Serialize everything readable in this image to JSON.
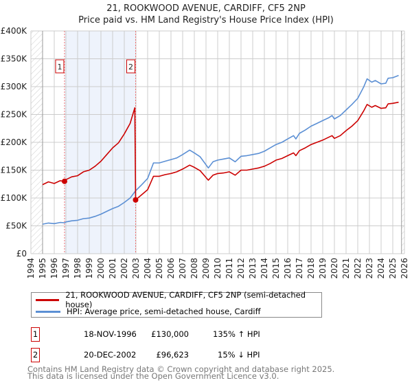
{
  "chart_data": {
    "type": "line",
    "title": "21, ROOKWOOD AVENUE, CARDIFF, CF5 2NP",
    "subtitle": "Price paid vs. HM Land Registry's House Price Index (HPI)",
    "xlabel": "",
    "ylabel": "",
    "xlim": [
      1994,
      2026
    ],
    "ylim": [
      0,
      400000
    ],
    "grid": true,
    "y_ticks": [
      {
        "value": 0,
        "label": "£0"
      },
      {
        "value": 50000,
        "label": "£50K"
      },
      {
        "value": 100000,
        "label": "£100K"
      },
      {
        "value": 150000,
        "label": "£150K"
      },
      {
        "value": 200000,
        "label": "£200K"
      },
      {
        "value": 250000,
        "label": "£250K"
      },
      {
        "value": 300000,
        "label": "£300K"
      },
      {
        "value": 350000,
        "label": "£350K"
      },
      {
        "value": 400000,
        "label": "£400K"
      }
    ],
    "x_ticks": [
      "1994",
      "1995",
      "1996",
      "1997",
      "1998",
      "1999",
      "2000",
      "2001",
      "2002",
      "2003",
      "2004",
      "2005",
      "2006",
      "2007",
      "2008",
      "2009",
      "2010",
      "2011",
      "2012",
      "2013",
      "2014",
      "2015",
      "2016",
      "2017",
      "2018",
      "2019",
      "2020",
      "2021",
      "2022",
      "2023",
      "2024",
      "2025",
      "2026"
    ],
    "data_range": [
      1995,
      2025.75
    ],
    "series": [
      {
        "name": "21, ROOKWOOD AVENUE, CARDIFF, CF5 2NP (semi-detached house)",
        "color": "#cc0000",
        "x": [
          1995,
          1995.5,
          1996,
          1996.5,
          1996.88,
          1997,
          1997.5,
          1998,
          1998.5,
          1999,
          1999.5,
          2000,
          2000.5,
          2001,
          2001.5,
          2002,
          2002.5,
          2002.9,
          2002.97,
          2003.5,
          2004,
          2004.5,
          2005,
          2005.5,
          2006,
          2006.5,
          2007,
          2007.6,
          2008,
          2008.5,
          2009.2,
          2009.6,
          2010,
          2010.5,
          2011,
          2011.5,
          2012,
          2012.5,
          2013,
          2013.5,
          2014,
          2014.5,
          2015,
          2015.5,
          2016,
          2016.5,
          2016.7,
          2017,
          2017.5,
          2018,
          2018.5,
          2019,
          2019.5,
          2019.8,
          2020,
          2020.5,
          2021,
          2021.5,
          2022,
          2022.5,
          2022.8,
          2023.2,
          2023.5,
          2024,
          2024.4,
          2024.6,
          2025,
          2025.5
        ],
        "y": [
          124000,
          129000,
          126000,
          131000,
          130000,
          133000,
          138000,
          140000,
          147000,
          150000,
          157000,
          166000,
          178000,
          190000,
          199000,
          215000,
          234000,
          262000,
          96623,
          106000,
          115000,
          139000,
          139000,
          142000,
          144000,
          147000,
          152000,
          159000,
          155000,
          149000,
          132000,
          141000,
          144000,
          145000,
          147000,
          141000,
          150000,
          150000,
          152000,
          154000,
          157000,
          162000,
          168000,
          171000,
          176000,
          181000,
          176000,
          185000,
          190000,
          196000,
          200000,
          204000,
          209000,
          212000,
          207000,
          212000,
          221000,
          229000,
          239000,
          256000,
          268000,
          263000,
          266000,
          261000,
          262000,
          269000,
          270000,
          272000
        ]
      },
      {
        "name": "HPI: Average price, semi-detached house, Cardiff",
        "color": "#5b8fd4",
        "x": [
          1995,
          1995.5,
          1996,
          1996.5,
          1996.88,
          1997,
          1997.5,
          1998,
          1998.5,
          1999,
          1999.5,
          2000,
          2000.5,
          2001,
          2001.5,
          2002,
          2002.5,
          2002.97,
          2003.5,
          2004,
          2004.5,
          2005,
          2005.5,
          2006,
          2006.5,
          2007,
          2007.6,
          2008,
          2008.5,
          2009.2,
          2009.6,
          2010,
          2010.5,
          2011,
          2011.5,
          2012,
          2012.5,
          2013,
          2013.5,
          2014,
          2014.5,
          2015,
          2015.5,
          2016,
          2016.5,
          2016.7,
          2017,
          2017.5,
          2018,
          2018.5,
          2019,
          2019.5,
          2019.8,
          2020,
          2020.5,
          2021,
          2021.5,
          2022,
          2022.5,
          2022.8,
          2023.2,
          2023.5,
          2024,
          2024.4,
          2024.6,
          2025,
          2025.5
        ],
        "y": [
          53000,
          55000,
          54000,
          56000,
          55500,
          57000,
          59000,
          60000,
          63000,
          64000,
          67000,
          71000,
          76000,
          81000,
          85000,
          92000,
          100000,
          113000,
          124000,
          135000,
          163000,
          163000,
          166000,
          169000,
          172000,
          178000,
          186000,
          181000,
          174000,
          154000,
          165000,
          168000,
          170000,
          172000,
          165000,
          175000,
          176000,
          178000,
          180000,
          184000,
          190000,
          196000,
          200000,
          206000,
          212000,
          206000,
          216000,
          222000,
          229000,
          234000,
          239000,
          244000,
          248000,
          242000,
          248000,
          258000,
          268000,
          279000,
          299000,
          314000,
          308000,
          311000,
          305000,
          306000,
          315000,
          316000,
          320000
        ]
      }
    ],
    "sales": [
      {
        "id": "1",
        "x": 1996.88,
        "y": 130000,
        "date": "18-NOV-1996",
        "price": "£130,000",
        "hpi": "135% ↑ HPI"
      },
      {
        "id": "2",
        "x": 2002.97,
        "y": 96623,
        "date": "20-DEC-2002",
        "price": "£96,623",
        "hpi": "15% ↓ HPI"
      }
    ],
    "legend_position": "bottom"
  },
  "footer": {
    "line1": "Contains HM Land Registry data © Crown copyright and database right 2025.",
    "line2": "This data is licensed under the Open Government Licence v3.0."
  }
}
